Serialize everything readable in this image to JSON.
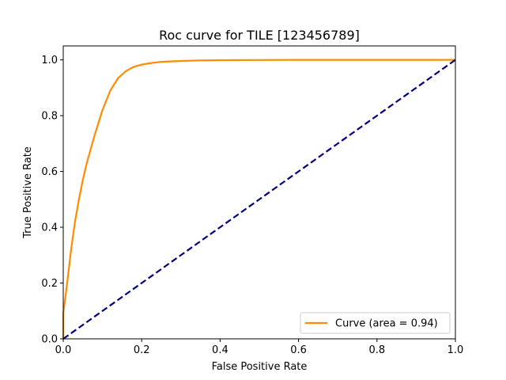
{
  "chart_data": {
    "type": "line",
    "title": "Roc curve for TILE [123456789]",
    "xlabel": "False Positive Rate",
    "ylabel": "True Positive Rate",
    "xlim": [
      0.0,
      1.0
    ],
    "ylim": [
      0.0,
      1.05
    ],
    "grid": false,
    "legend_position": "lower-right",
    "x_ticks": [
      0.0,
      0.2,
      0.4,
      0.6,
      0.8,
      1.0
    ],
    "x_tick_labels": [
      "0.0",
      "0.2",
      "0.4",
      "0.6",
      "0.8",
      "1.0"
    ],
    "y_ticks": [
      0.0,
      0.2,
      0.4,
      0.6,
      0.8,
      1.0
    ],
    "y_tick_labels": [
      "0.0",
      "0.2",
      "0.4",
      "0.6",
      "0.8",
      "1.0"
    ],
    "series": [
      {
        "name": "Curve (area = 0.94)",
        "color": "#ff8c00",
        "style": "solid",
        "x": [
          0.0,
          0.0,
          0.01,
          0.02,
          0.03,
          0.04,
          0.05,
          0.06,
          0.08,
          0.1,
          0.12,
          0.14,
          0.16,
          0.18,
          0.2,
          0.22,
          0.25,
          0.3,
          0.35,
          0.4,
          0.5,
          0.6,
          0.7,
          0.8,
          0.9,
          1.0
        ],
        "y": [
          0.0,
          0.09,
          0.2,
          0.32,
          0.42,
          0.5,
          0.57,
          0.63,
          0.73,
          0.82,
          0.89,
          0.935,
          0.96,
          0.975,
          0.983,
          0.988,
          0.993,
          0.996,
          0.998,
          0.999,
          0.9995,
          1.0,
          1.0,
          1.0,
          1.0,
          1.0
        ]
      },
      {
        "color": "#000080",
        "style": "dashed",
        "x": [
          0.0,
          1.0
        ],
        "y": [
          0.0,
          1.0
        ]
      }
    ]
  }
}
